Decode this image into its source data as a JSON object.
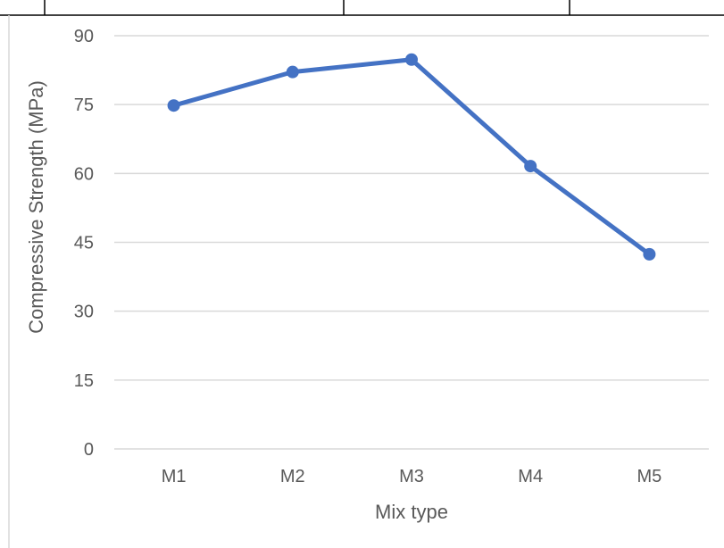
{
  "chart_data": {
    "type": "line",
    "title": "",
    "xlabel": "Mix type",
    "ylabel": "Compressive Strength (MPa)",
    "categories": [
      "M1",
      "M2",
      "M3",
      "M4",
      "M5"
    ],
    "series": [
      {
        "values": [
          74.8,
          82.1,
          84.8,
          61.6,
          42.4
        ],
        "color": "#4472c4"
      }
    ],
    "ylim": [
      0,
      90
    ],
    "yticks": [
      0,
      15,
      30,
      45,
      60,
      75,
      90
    ],
    "ytick_labels": [
      "0",
      "15",
      "30",
      "45",
      "60",
      "75",
      "90"
    ],
    "grid": true,
    "legend": "none",
    "markers": true
  }
}
